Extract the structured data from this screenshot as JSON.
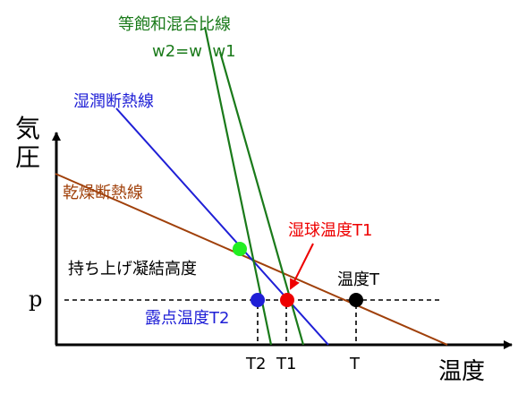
{
  "axes": {
    "y_label": "気圧",
    "x_label": "温度",
    "p_label": "p"
  },
  "lines": {
    "mixing_ratio_title": "等飽和混合比線",
    "mixing_ratio_sub": "w2=w  w1",
    "moist_adiabat": "湿潤断熱線",
    "dry_adiabat": "乾燥断熱線"
  },
  "points": {
    "lcl": "持ち上げ凝結高度",
    "wet_bulb": "湿球温度T1",
    "temperature": "温度T",
    "dew_point": "露点温度T2"
  },
  "ticks": {
    "t2": "T2",
    "t1": "T1",
    "t": "T"
  },
  "colors": {
    "green": "#1a7a1a",
    "blue": "#1f1fd6",
    "brown": "#a0400a",
    "red": "#ee0000",
    "lcl_point": "#22ee22",
    "black": "#000000"
  }
}
